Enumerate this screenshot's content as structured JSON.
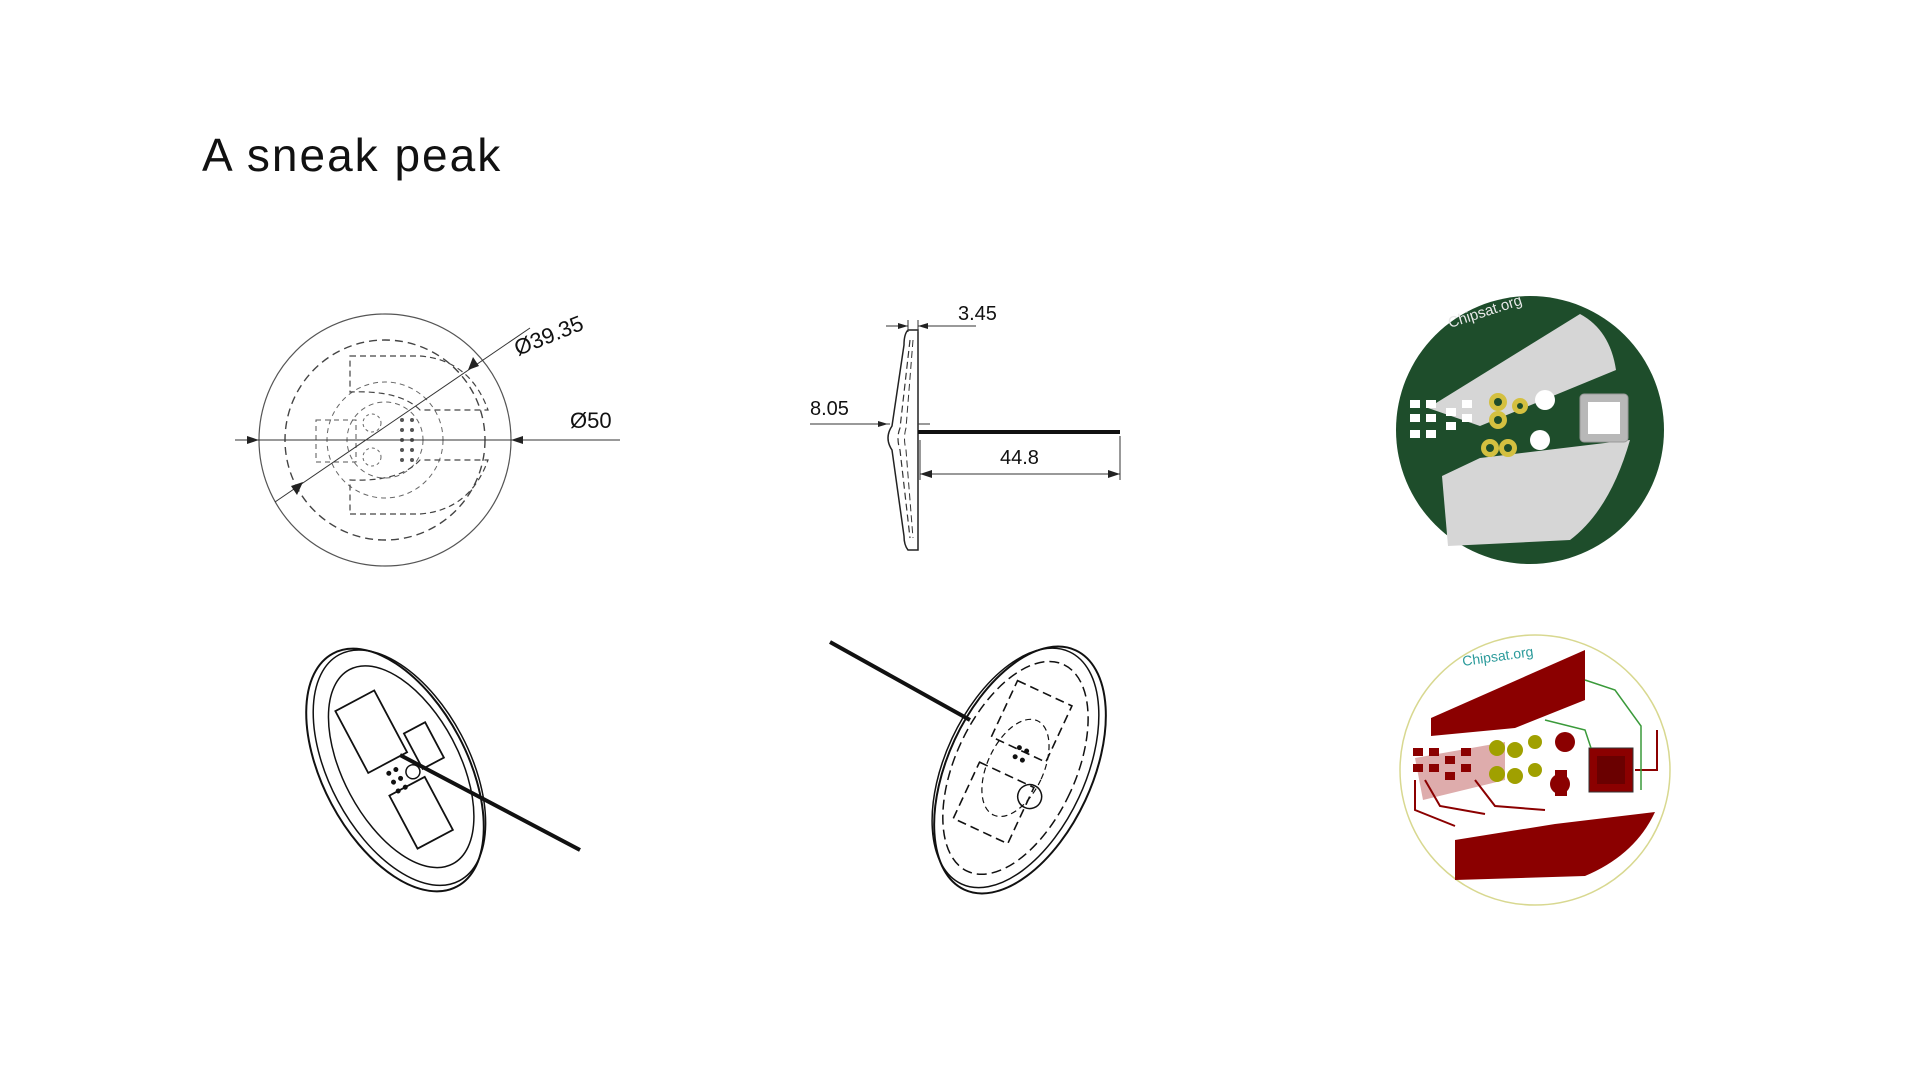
{
  "slide": {
    "title": "A sneak peak"
  },
  "front_view": {
    "dim_inner_diameter": "Ø39.35",
    "dim_outer_diameter": "Ø50"
  },
  "side_view": {
    "dim_thickness": "3.45",
    "dim_height": "8.05",
    "dim_antenna_length": "44.8"
  },
  "pcb_render": {
    "silkscreen_text": "Chipsat.org",
    "board_color": "#1e4d2b"
  },
  "pcb_layout": {
    "silkscreen_text": "Chipsat.org",
    "copper_color": "#8b0000",
    "outline_color": "#d8d890"
  }
}
